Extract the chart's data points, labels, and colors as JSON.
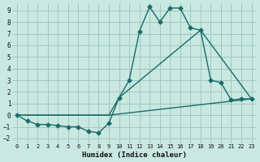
{
  "xlabel": "Humidex (Indice chaleur)",
  "bg_color": "#c8e8e0",
  "grid_color": "#a0c8c0",
  "line_color": "#1a6b6b",
  "xlim": [
    -0.5,
    23.5
  ],
  "ylim": [
    -2.4,
    9.6
  ],
  "xticks": [
    0,
    1,
    2,
    3,
    4,
    5,
    6,
    7,
    8,
    9,
    10,
    11,
    12,
    13,
    14,
    15,
    16,
    17,
    18,
    19,
    20,
    21,
    22,
    23
  ],
  "yticks": [
    -2,
    -1,
    0,
    1,
    2,
    3,
    4,
    5,
    6,
    7,
    8,
    9
  ],
  "line1_x": [
    0,
    1,
    2,
    3,
    4,
    5,
    6,
    7,
    8,
    9,
    10,
    11,
    12,
    13,
    14,
    15,
    16,
    17,
    18,
    19,
    20,
    21,
    22,
    23
  ],
  "line1_y": [
    0.0,
    -0.5,
    -0.8,
    -0.8,
    -0.9,
    -1.0,
    -1.0,
    -1.4,
    -1.5,
    -0.7,
    1.5,
    3.0,
    7.2,
    9.3,
    8.0,
    9.2,
    9.2,
    7.5,
    7.3,
    3.0,
    2.8,
    1.3,
    1.4,
    1.4
  ],
  "line2_x": [
    0,
    9,
    10,
    18,
    23
  ],
  "line2_y": [
    0.0,
    0.0,
    1.5,
    7.3,
    1.4
  ],
  "line3_x": [
    0,
    9,
    23
  ],
  "line3_y": [
    0.0,
    0.0,
    1.4
  ]
}
